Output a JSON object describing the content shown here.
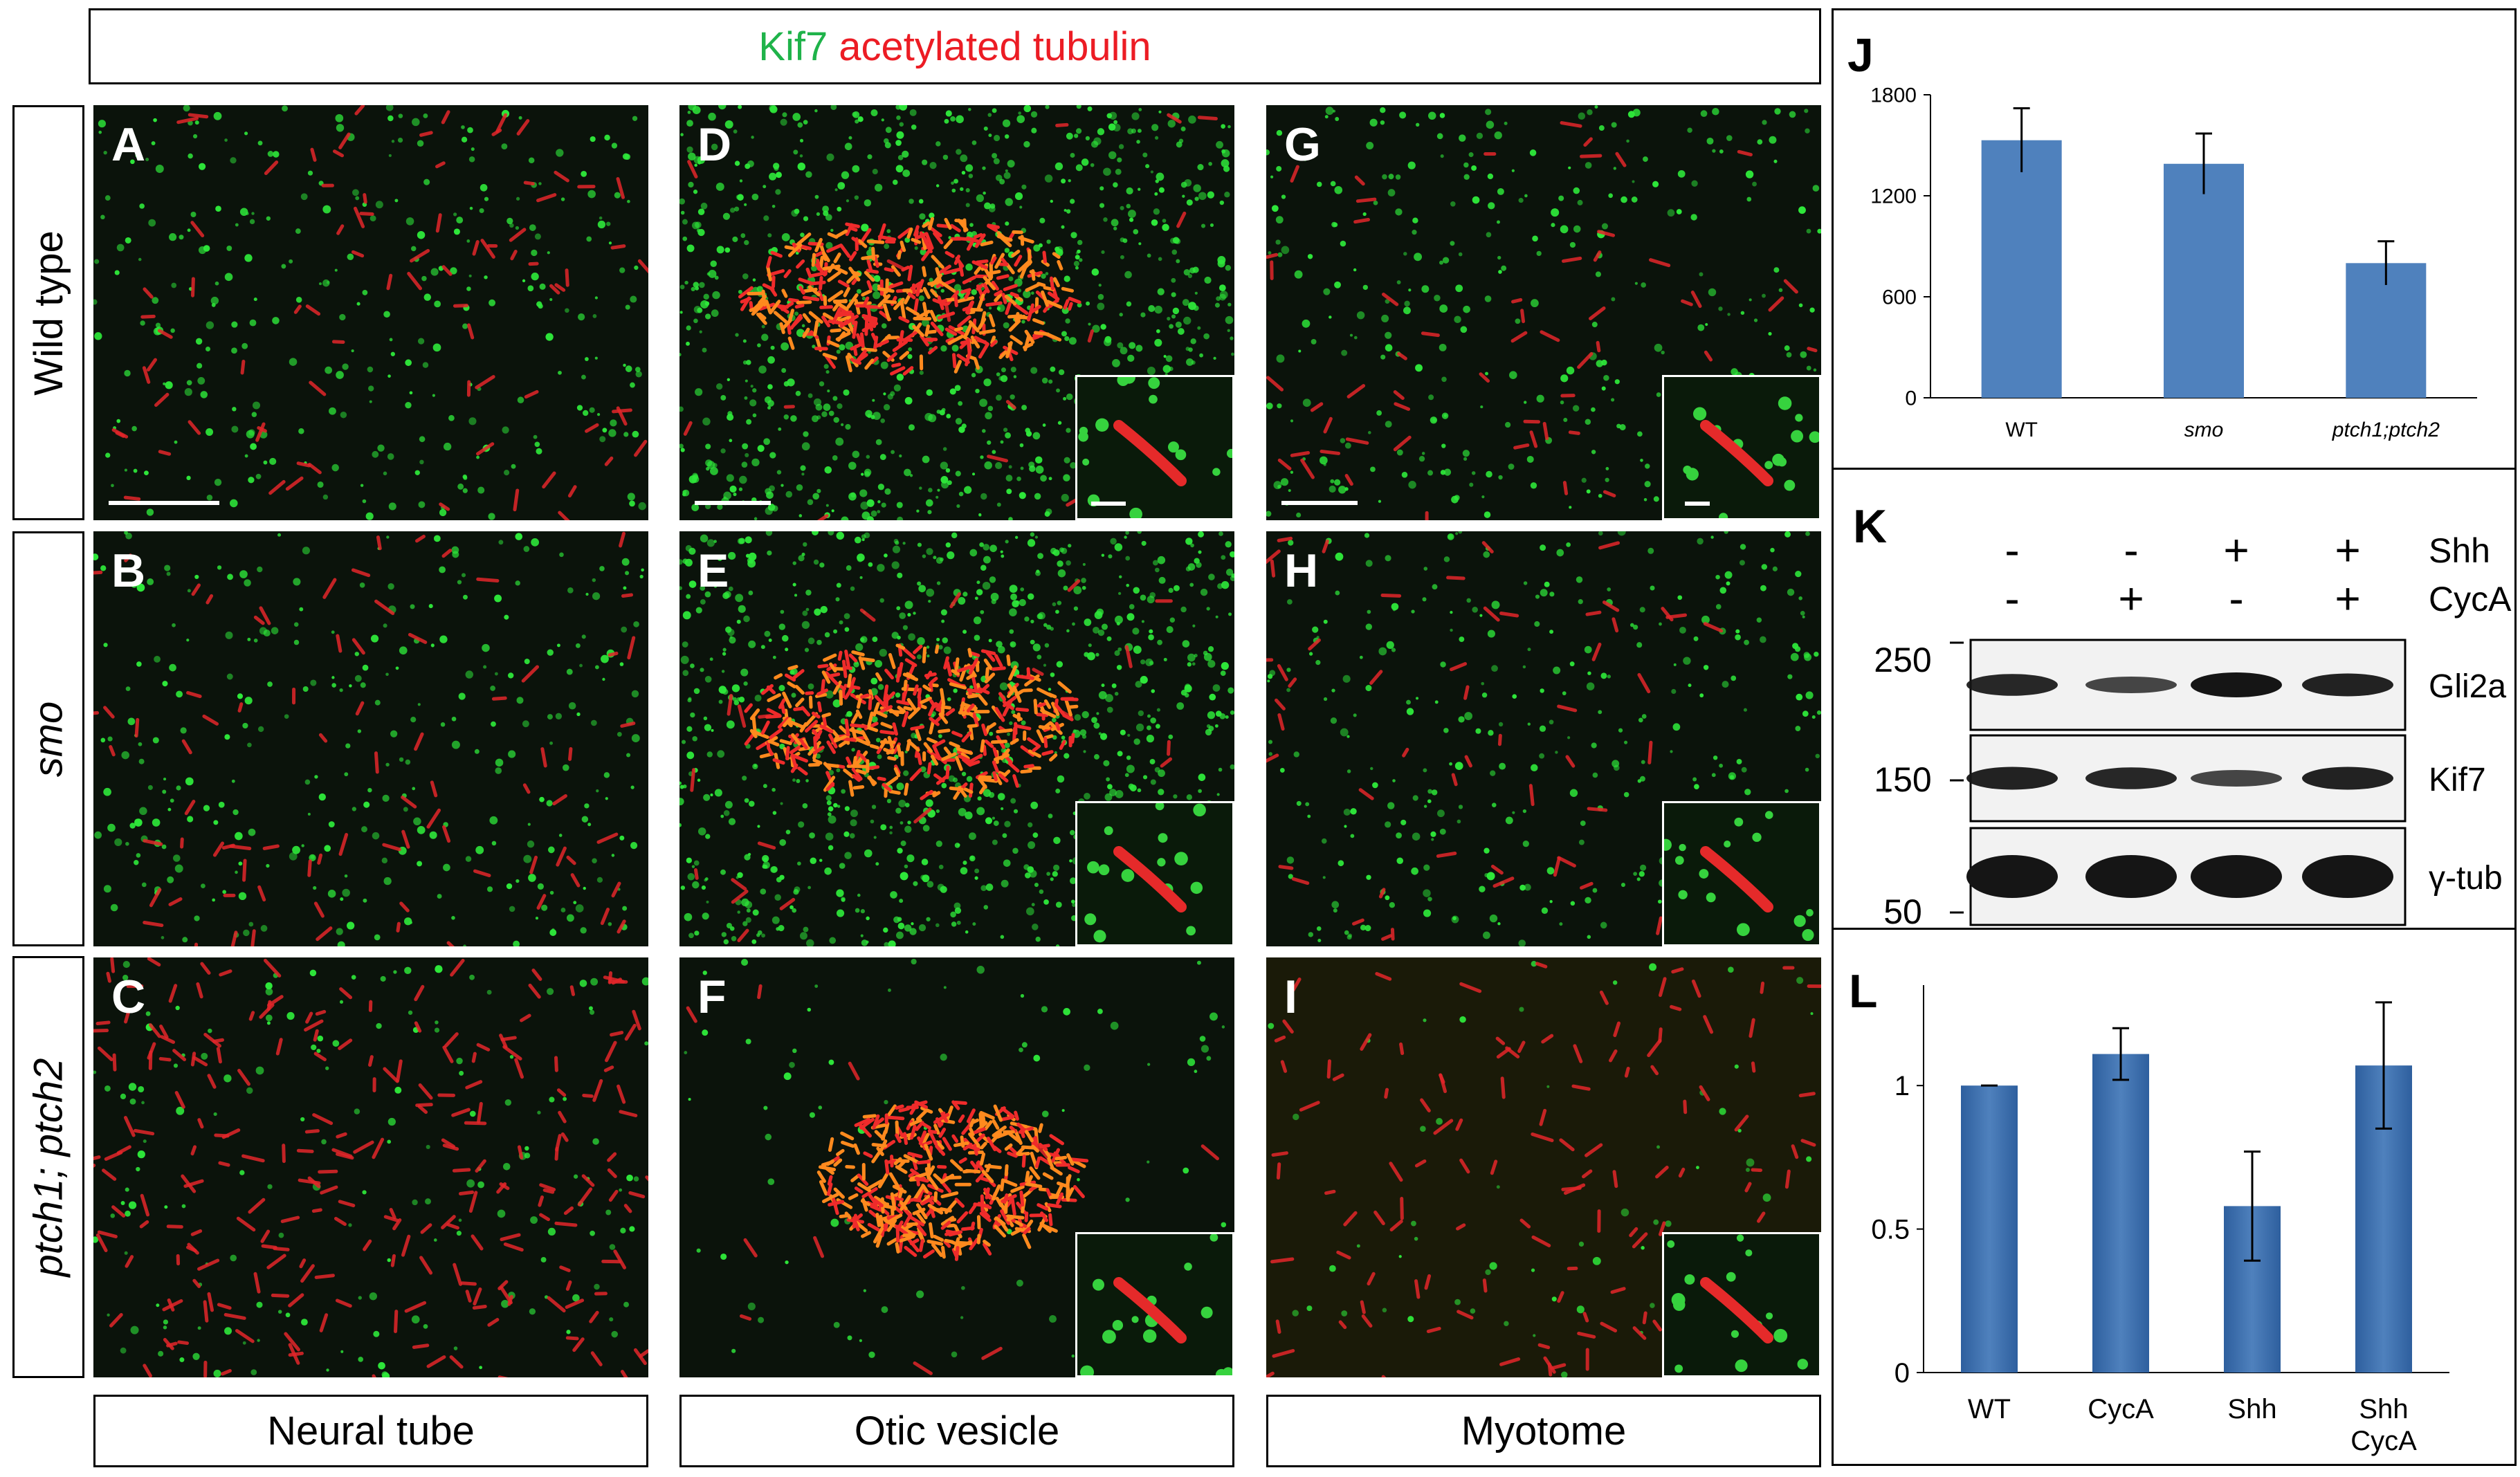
{
  "title": {
    "green": "Kif7",
    "red": "acetylated tubulin"
  },
  "rows": [
    {
      "label": "Wild type",
      "italic": false
    },
    {
      "label": "smo",
      "italic": true
    },
    {
      "label": "ptch1; ptch2",
      "italic": true
    }
  ],
  "columns": [
    "Neural tube",
    "Otic vesicle",
    "Myotome"
  ],
  "panels": [
    "A",
    "B",
    "C",
    "D",
    "E",
    "F",
    "G",
    "H",
    "I"
  ],
  "colors": {
    "green": "#1fb34a",
    "red": "#ec1c24",
    "bar": "#4f81bd",
    "bar_dark": "#2e5f9e"
  },
  "panel_J": {
    "label": "J"
  },
  "panel_K": {
    "label": "K",
    "treatments": [
      {
        "name": "Shh",
        "signs": [
          "-",
          "-",
          "+",
          "+"
        ]
      },
      {
        "name": "CycA",
        "signs": [
          "-",
          "+",
          "-",
          "+"
        ]
      }
    ],
    "blots": [
      {
        "name": "Gli2a",
        "marker": "250",
        "intensity": [
          0.85,
          0.6,
          1.0,
          0.9
        ]
      },
      {
        "name": "Kif7",
        "marker": "150",
        "intensity": [
          0.9,
          0.85,
          0.6,
          0.9
        ]
      },
      {
        "name": "γ-tub",
        "marker": "50",
        "intensity": [
          1.0,
          1.0,
          1.0,
          1.0
        ]
      }
    ]
  },
  "panel_L": {
    "label": "L"
  },
  "chart_data": [
    {
      "type": "bar",
      "panel": "J",
      "categories": [
        "WT",
        "smo",
        "ptch1;ptch2"
      ],
      "italic_categories": [
        false,
        true,
        true
      ],
      "values": [
        1530,
        1390,
        800
      ],
      "errors": [
        190,
        180,
        130
      ],
      "ylim": [
        0,
        1800
      ],
      "yticks": [
        "0",
        "600",
        "1200",
        "1800"
      ],
      "ytick_values": [
        0,
        600,
        1200,
        1800
      ],
      "grid": false
    },
    {
      "type": "bar",
      "panel": "L",
      "categories": [
        "WT",
        "CycA",
        "Shh",
        "Shh\nCycA"
      ],
      "values": [
        1.0,
        1.11,
        0.58,
        1.07
      ],
      "errors": [
        0.0,
        0.09,
        0.19,
        0.22
      ],
      "ylim": [
        0,
        1.35
      ],
      "yticks": [
        "0",
        "0.5",
        "1"
      ],
      "ytick_values": [
        0,
        0.5,
        1
      ],
      "grid": false
    }
  ]
}
